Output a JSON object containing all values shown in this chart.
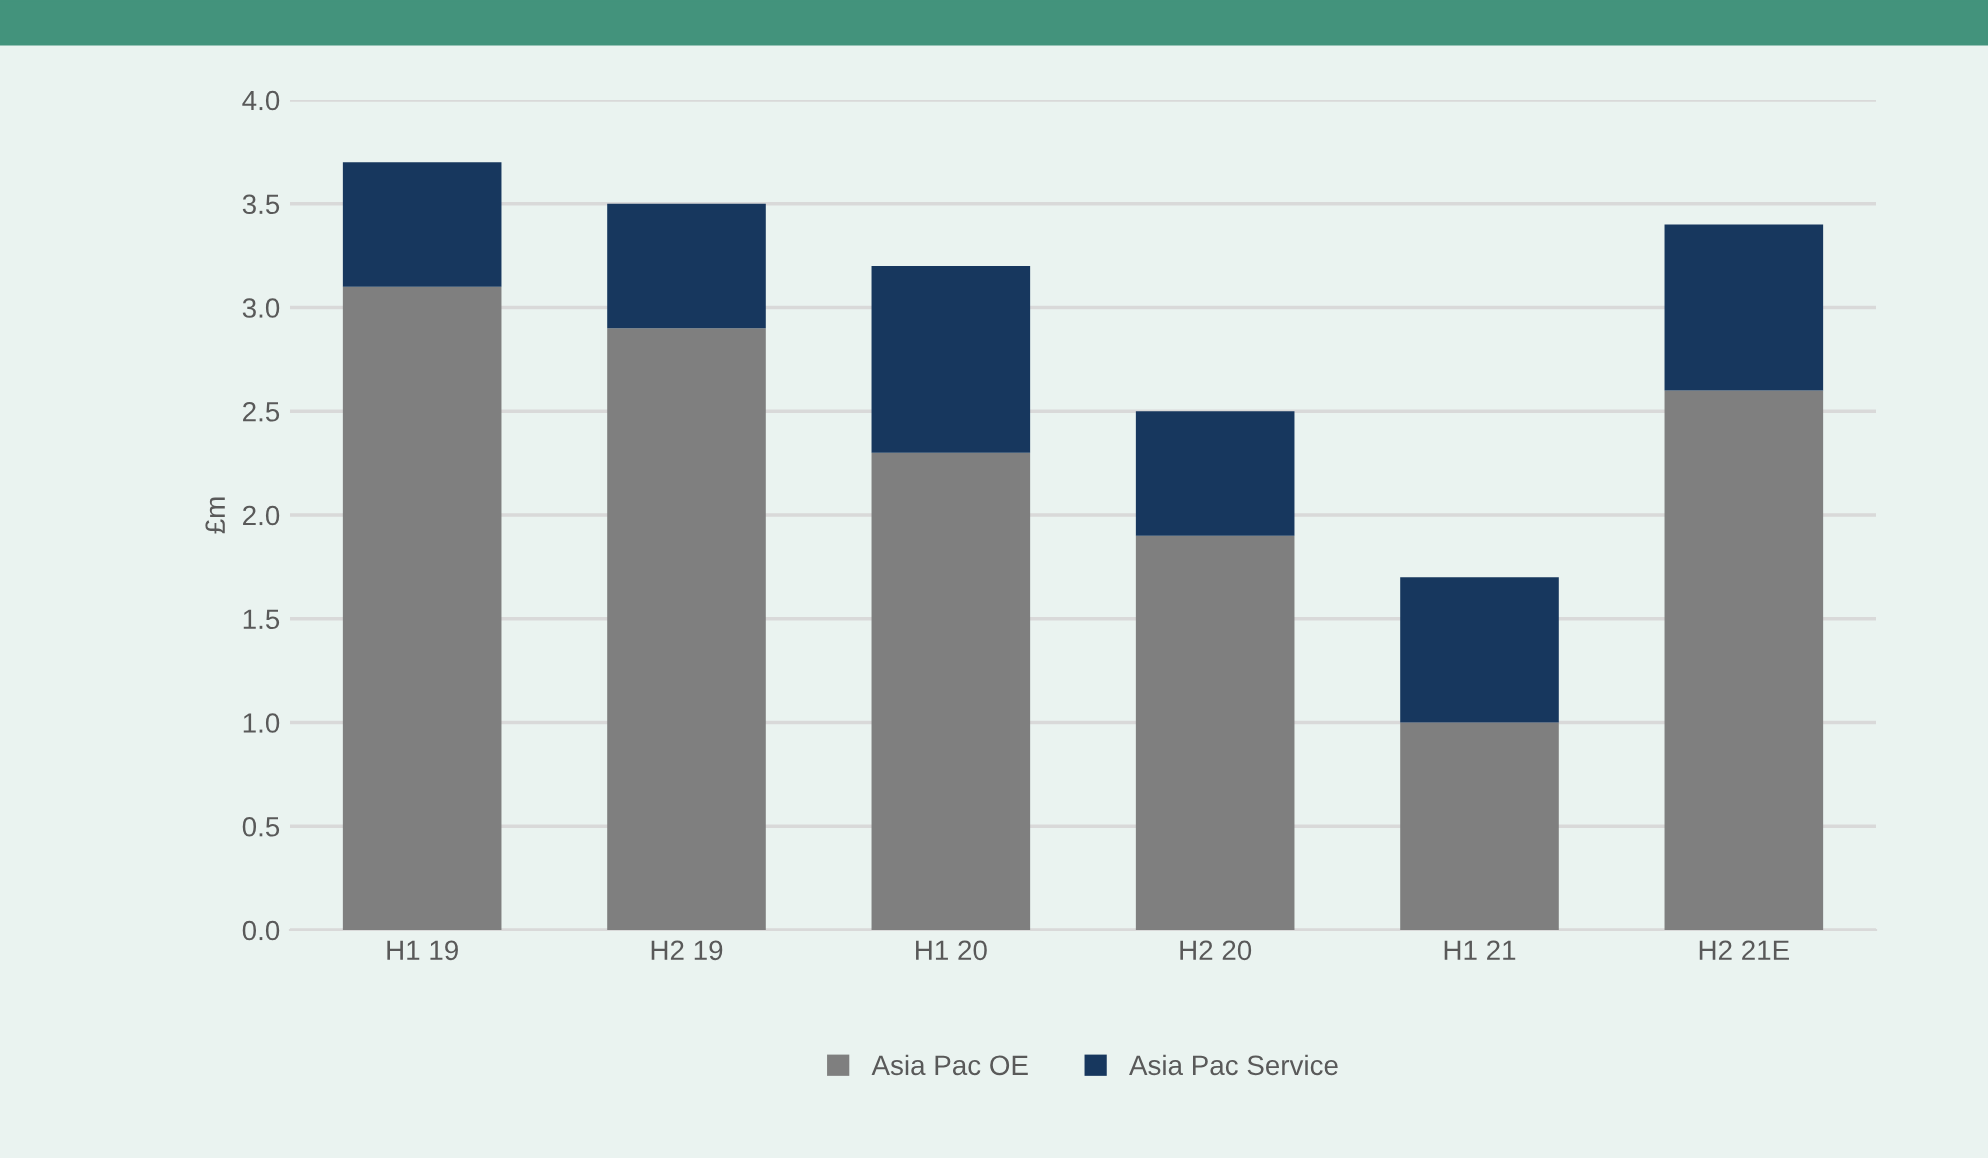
{
  "chart_data": {
    "type": "bar",
    "ylabel": "£m",
    "stacked": true,
    "categories": [
      "H1 19",
      "H2 19",
      "H1 20",
      "H2 20",
      "H1 21",
      "H2 21E"
    ],
    "series": [
      {
        "name": "Asia Pac OE",
        "color": "#7f7f7f",
        "values": [
          3.1,
          2.9,
          2.3,
          1.9,
          1.0,
          2.6
        ]
      },
      {
        "name": "Asia Pac Service",
        "color": "#17375e",
        "values": [
          0.6,
          0.6,
          0.9,
          0.6,
          0.7,
          0.8
        ]
      }
    ],
    "ylim": [
      0,
      4
    ],
    "yticks": [
      {
        "value": 0,
        "label": "0.0"
      },
      0.5,
      {
        "value": 1,
        "label": "1.0"
      },
      1.5,
      {
        "value": 2,
        "label": "2.0"
      },
      2.5,
      {
        "value": 3,
        "label": "3.0"
      },
      3.5,
      {
        "value": 4,
        "label": "4.0"
      }
    ],
    "grid": "y",
    "legend": "bottom"
  }
}
